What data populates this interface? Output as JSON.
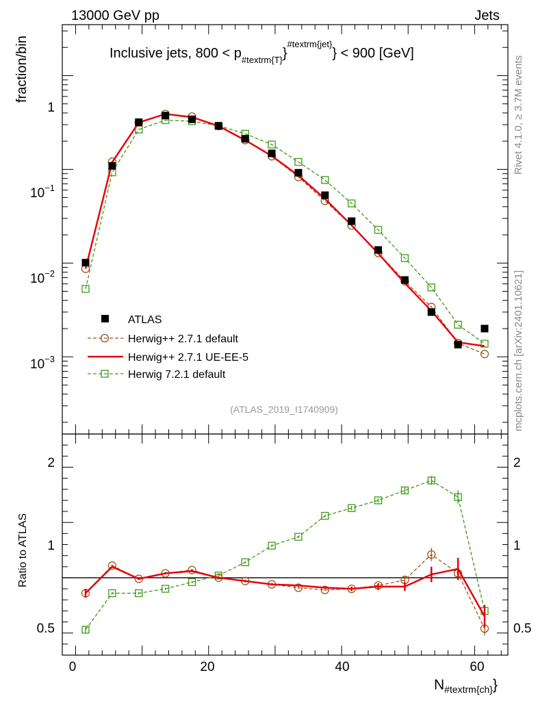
{
  "header": {
    "energy_label": "13000 GeV pp",
    "category_label": "Jets"
  },
  "side_labels": {
    "rivet": "Rivet 4.1.0, ≥ 3.7M events",
    "source": "mcplots.cern.ch [arXiv:2401.10621]"
  },
  "watermark": "(ATLAS_2019_I1740909)",
  "colors": {
    "atlas": "#000000",
    "herwigpp_default": "#a0521d",
    "herwigpp_ueee5": "#e8000b",
    "herwig7": "#3a9a12"
  },
  "chart_data": [
    {
      "type": "line",
      "title": "Inclusive jets, 800 < p_{#textrm{T}}^{#textrm{jet}} < 900 [GeV]",
      "title_parts": {
        "pre": "Inclusive jets, 800 < p",
        "sub": "#textrm{T}",
        "sup": "#textrm{jet}",
        "post": "} < 900 [GeV]",
        "brace": "}"
      },
      "ylabel": "fraction/bin",
      "yscale": "log",
      "ylim": [
        0.00015,
        3.5
      ],
      "xlim": [
        -2,
        65
      ],
      "ytick_labels": {
        "major_1": "1",
        "major_01_base": "10",
        "major_01_exp": "−1",
        "major_001_base": "10",
        "major_001_exp": "−2",
        "major_0001_base": "10",
        "major_0001_exp": "−3"
      },
      "x": [
        1.5,
        5.5,
        9.5,
        13.5,
        17.5,
        21.5,
        25.5,
        29.5,
        33.5,
        37.5,
        41.5,
        45.5,
        49.5,
        53.5,
        57.5,
        61.5
      ],
      "series": [
        {
          "name": "ATLAS",
          "style": "markers",
          "values": [
            0.0101,
            0.109,
            0.318,
            0.375,
            0.342,
            0.29,
            0.212,
            0.148,
            0.092,
            0.053,
            0.028,
            0.0138,
            0.0066,
            0.003,
            0.00135,
            0.002
          ]
        },
        {
          "name": "Herwig++ 2.7.1 default",
          "style": "dashed-circle",
          "values": [
            0.0087,
            0.121,
            0.317,
            0.39,
            0.366,
            0.29,
            0.205,
            0.138,
            0.083,
            0.046,
            0.0252,
            0.0128,
            0.0064,
            0.0034,
            0.0014,
            0.00107
          ]
        },
        {
          "name": "Herwig++ 2.7.1 UE-EE-5",
          "style": "solid",
          "values": [
            0.0087,
            0.119,
            0.316,
            0.39,
            0.36,
            0.29,
            0.205,
            0.139,
            0.086,
            0.0485,
            0.0253,
            0.0127,
            0.0061,
            0.0031,
            0.00143,
            0.0013
          ]
        },
        {
          "name": "Herwig 7.2.1 default",
          "style": "dashed-square",
          "values": [
            0.0053,
            0.093,
            0.266,
            0.335,
            0.326,
            0.292,
            0.24,
            0.184,
            0.12,
            0.077,
            0.0433,
            0.0226,
            0.0113,
            0.0055,
            0.0022,
            0.00138
          ]
        }
      ],
      "legend": {
        "placement": "lower-left",
        "entries": [
          "ATLAS",
          "Herwig++ 2.7.1 default",
          "Herwig++ 2.7.1 UE-EE-5",
          "Herwig 7.2.1 default"
        ]
      }
    },
    {
      "type": "line",
      "title": "",
      "ylabel": "Ratio to ATLAS",
      "xlabel_base": "N",
      "xlabel_sub": "#textrm{ch}",
      "xlabel_brace": "}",
      "ylim": [
        0.3,
        2.3
      ],
      "xlim": [
        -2,
        65
      ],
      "yticks": [
        "0.5",
        "1",
        "2"
      ],
      "xticks": [
        "0",
        "20",
        "40",
        "60"
      ],
      "reference_line": 1,
      "x": [
        1.5,
        5.5,
        9.5,
        13.5,
        17.5,
        21.5,
        25.5,
        29.5,
        33.5,
        37.5,
        41.5,
        45.5,
        49.5,
        53.5,
        57.5,
        61.5
      ],
      "series": [
        {
          "name": "Herwig++ 2.7.1 default",
          "style": "dashed-circle",
          "values": [
            0.86,
            1.11,
            0.99,
            1.04,
            1.07,
            1.0,
            0.97,
            0.94,
            0.91,
            0.89,
            0.9,
            0.93,
            0.98,
            1.21,
            1.04,
            0.54
          ],
          "errors": [
            0.03,
            0.01,
            0.01,
            0.01,
            0.01,
            0.01,
            0.01,
            0.01,
            0.01,
            0.01,
            0.01,
            0.02,
            0.03,
            0.06,
            0.06,
            0.06
          ]
        },
        {
          "name": "Herwig++ 2.7.1 UE-EE-5",
          "style": "solid",
          "values": [
            0.86,
            1.1,
            0.99,
            1.04,
            1.06,
            1.0,
            0.97,
            0.94,
            0.93,
            0.91,
            0.9,
            0.92,
            0.92,
            1.03,
            1.08,
            0.65
          ],
          "errors": [
            0.04,
            0.01,
            0.01,
            0.01,
            0.01,
            0.01,
            0.01,
            0.01,
            0.01,
            0.01,
            0.02,
            0.03,
            0.04,
            0.07,
            0.1,
            0.1
          ]
        },
        {
          "name": "Herwig 7.2.1 default",
          "style": "dashed-square",
          "values": [
            0.53,
            0.86,
            0.86,
            0.9,
            0.96,
            1.02,
            1.14,
            1.29,
            1.37,
            1.56,
            1.63,
            1.7,
            1.79,
            1.88,
            1.73,
            0.7
          ],
          "errors": [
            0.03,
            0.01,
            0.01,
            0.01,
            0.01,
            0.01,
            0.01,
            0.01,
            0.01,
            0.01,
            0.02,
            0.02,
            0.03,
            0.04,
            0.06,
            0.06
          ]
        }
      ]
    }
  ]
}
